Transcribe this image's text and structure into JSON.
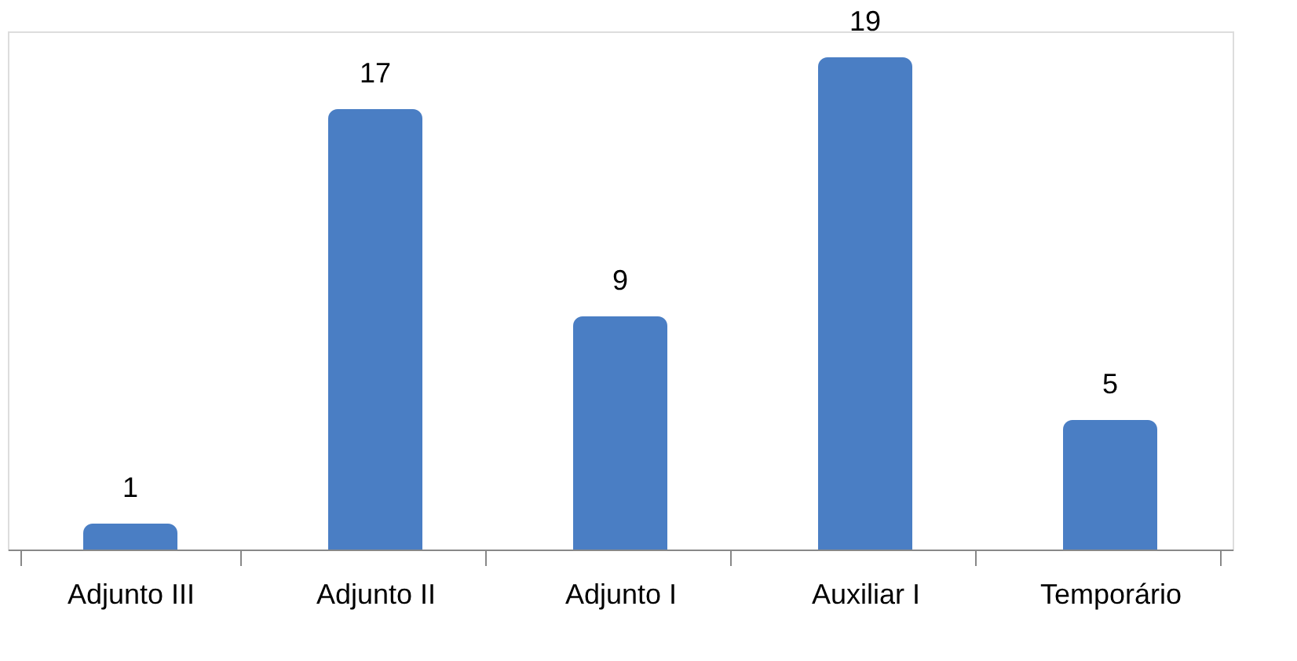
{
  "chart_data": {
    "type": "bar",
    "categories": [
      "Adjunto III",
      "Adjunto II",
      "Adjunto I",
      "Auxiliar I",
      "Temporário"
    ],
    "values": [
      1,
      17,
      9,
      19,
      5
    ],
    "color": "#4a7ec4",
    "data_labels": true
  }
}
